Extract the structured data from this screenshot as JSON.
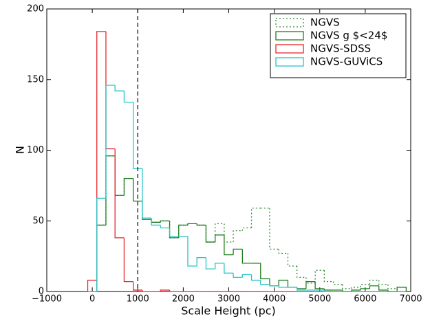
{
  "chart_data": {
    "type": "histogram",
    "xlabel": "Scale Height (pc)",
    "ylabel": "N",
    "bins": [
      -100,
      100,
      300,
      500,
      700,
      900,
      1100,
      1300,
      1500,
      1700,
      1900,
      2100,
      2300,
      2500,
      2700,
      2900,
      3100,
      3300,
      3500,
      3700,
      3900,
      4100,
      4300,
      4500,
      4700,
      4900,
      5100,
      5300,
      5500,
      5700,
      5900,
      6100,
      6300,
      6500,
      6700,
      6900
    ],
    "series": [
      {
        "name": "NGVS",
        "color": "#2e8b2e",
        "linestyle": "dotted",
        "values": [
          0,
          47,
          96,
          68,
          80,
          64,
          51,
          49,
          50,
          38,
          47,
          48,
          47,
          35,
          48,
          35,
          43,
          45,
          59,
          59,
          30,
          27,
          18,
          10,
          6,
          15,
          7,
          5,
          2,
          3,
          5,
          8,
          5,
          2,
          3
        ]
      },
      {
        "name": "NGVS g $<24$",
        "color": "#1e7d1e",
        "linestyle": "solid",
        "values": [
          0,
          47,
          96,
          68,
          80,
          64,
          51,
          49,
          50,
          38,
          47,
          48,
          47,
          35,
          40,
          26,
          30,
          20,
          20,
          9,
          4,
          8,
          3,
          2,
          7,
          2,
          1,
          1,
          0,
          1,
          2,
          4,
          1,
          0,
          3
        ]
      },
      {
        "name": "NGVS-SDSS",
        "color": "#e8262a",
        "linestyle": "solid",
        "values": [
          8,
          184,
          101,
          38,
          7,
          1,
          0,
          0,
          1,
          0,
          0,
          0,
          0,
          0,
          0,
          0,
          0,
          0,
          0,
          0,
          0,
          0,
          0,
          0,
          0,
          0,
          0,
          0,
          0,
          0,
          0,
          0,
          0,
          0,
          0
        ]
      },
      {
        "name": "NGVS-GUViCS",
        "color": "#25c4c8",
        "linestyle": "solid",
        "values": [
          0,
          66,
          146,
          142,
          134,
          87,
          52,
          47,
          45,
          39,
          39,
          18,
          24,
          16,
          20,
          13,
          10,
          12,
          8,
          5,
          4,
          3,
          3,
          1,
          1,
          1,
          0,
          0,
          0,
          0,
          0,
          0,
          0,
          0,
          0
        ]
      }
    ],
    "vline": 1000,
    "xlim": [
      -1000,
      7000
    ],
    "xticks": [
      {
        "value": -1000,
        "label": "−1000"
      },
      0,
      1000,
      2000,
      3000,
      4000,
      5000,
      6000,
      7000
    ],
    "ylim": [
      0,
      200
    ],
    "yticks": [
      0,
      50,
      100,
      150,
      200
    ],
    "legend": "upper right"
  }
}
